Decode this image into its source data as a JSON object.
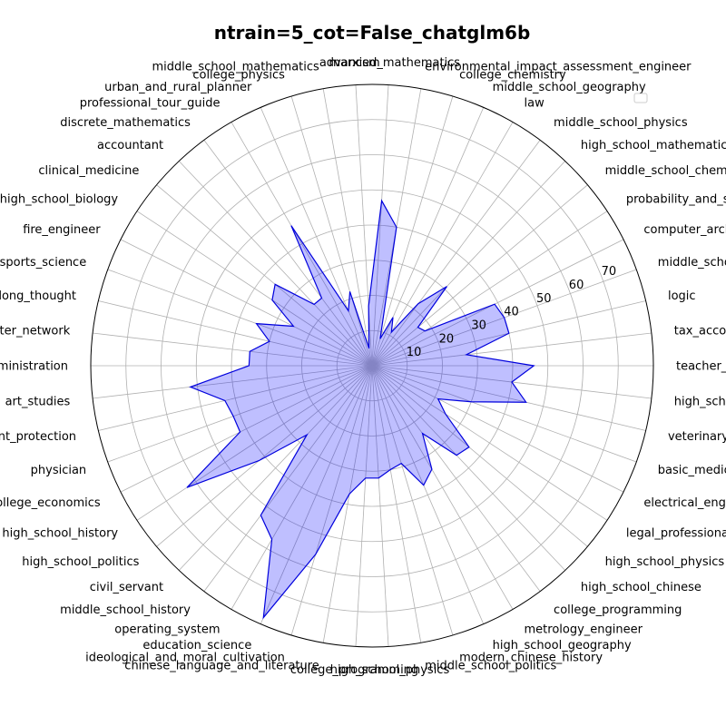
{
  "chart_data": {
    "type": "radar",
    "title": "ntrain=5_cot=False_chatglm6b",
    "r_ticks": [
      10,
      20,
      30,
      40,
      50,
      60,
      70
    ],
    "rlim": [
      0,
      80
    ],
    "grid": true,
    "legend": "top-right",
    "colors": {
      "line": "#0000dd",
      "fill": "#0000ff"
    },
    "categories": [
      "teacher_qualification",
      "tax_accountant",
      "logic",
      "middle_school_biology",
      "computer_architecture",
      "probability_and_statistics",
      "middle_school_chemistry",
      "high_school_mathematics",
      "middle_school_physics",
      "law",
      "middle_school_geography",
      "college_chemistry",
      "environmental_impact_assessment_engineer",
      "advanced_mathematics",
      "marxism",
      "middle_school_mathematics",
      "college_physics",
      "urban_and_rural_planner",
      "professional_tour_guide",
      "discrete_mathematics",
      "accountant",
      "clinical_medicine",
      "high_school_biology",
      "fire_engineer",
      "sports_science",
      "mao_zedong_thought",
      "computer_network",
      "business_administration",
      "art_studies",
      "plant_protection",
      "physician",
      "college_economics",
      "high_school_history",
      "high_school_politics",
      "civil_servant",
      "middle_school_history",
      "operating_system",
      "education_science",
      "ideological_and_moral_cultivation",
      "chinese_language_and_literature",
      "college_programming",
      "high_school_physics",
      "middle_school_politics",
      "modern_chinese_history",
      "high_school_geography",
      "metrology_engineer",
      "college_programming",
      "high_school_chinese",
      "high_school_physics",
      "legal_professional",
      "electrical_engineer",
      "basic_medicine",
      "veterinary_medicine",
      "high_school_chemistry"
    ],
    "series": [
      {
        "values": [
          46,
          27,
          40,
          40,
          39,
          18,
          17,
          31,
          22,
          11,
          15,
          8,
          40,
          47,
          17,
          5,
          22,
          17,
          46,
          24,
          24,
          36,
          34,
          25,
          35,
          30,
          35,
          35,
          52,
          43,
          42,
          42,
          63,
          42,
          27,
          53,
          57,
          78,
          56,
          37,
          32,
          32,
          30,
          29,
          37,
          34,
          24,
          35,
          36,
          25,
          21,
          30,
          45,
          40
        ]
      }
    ]
  }
}
